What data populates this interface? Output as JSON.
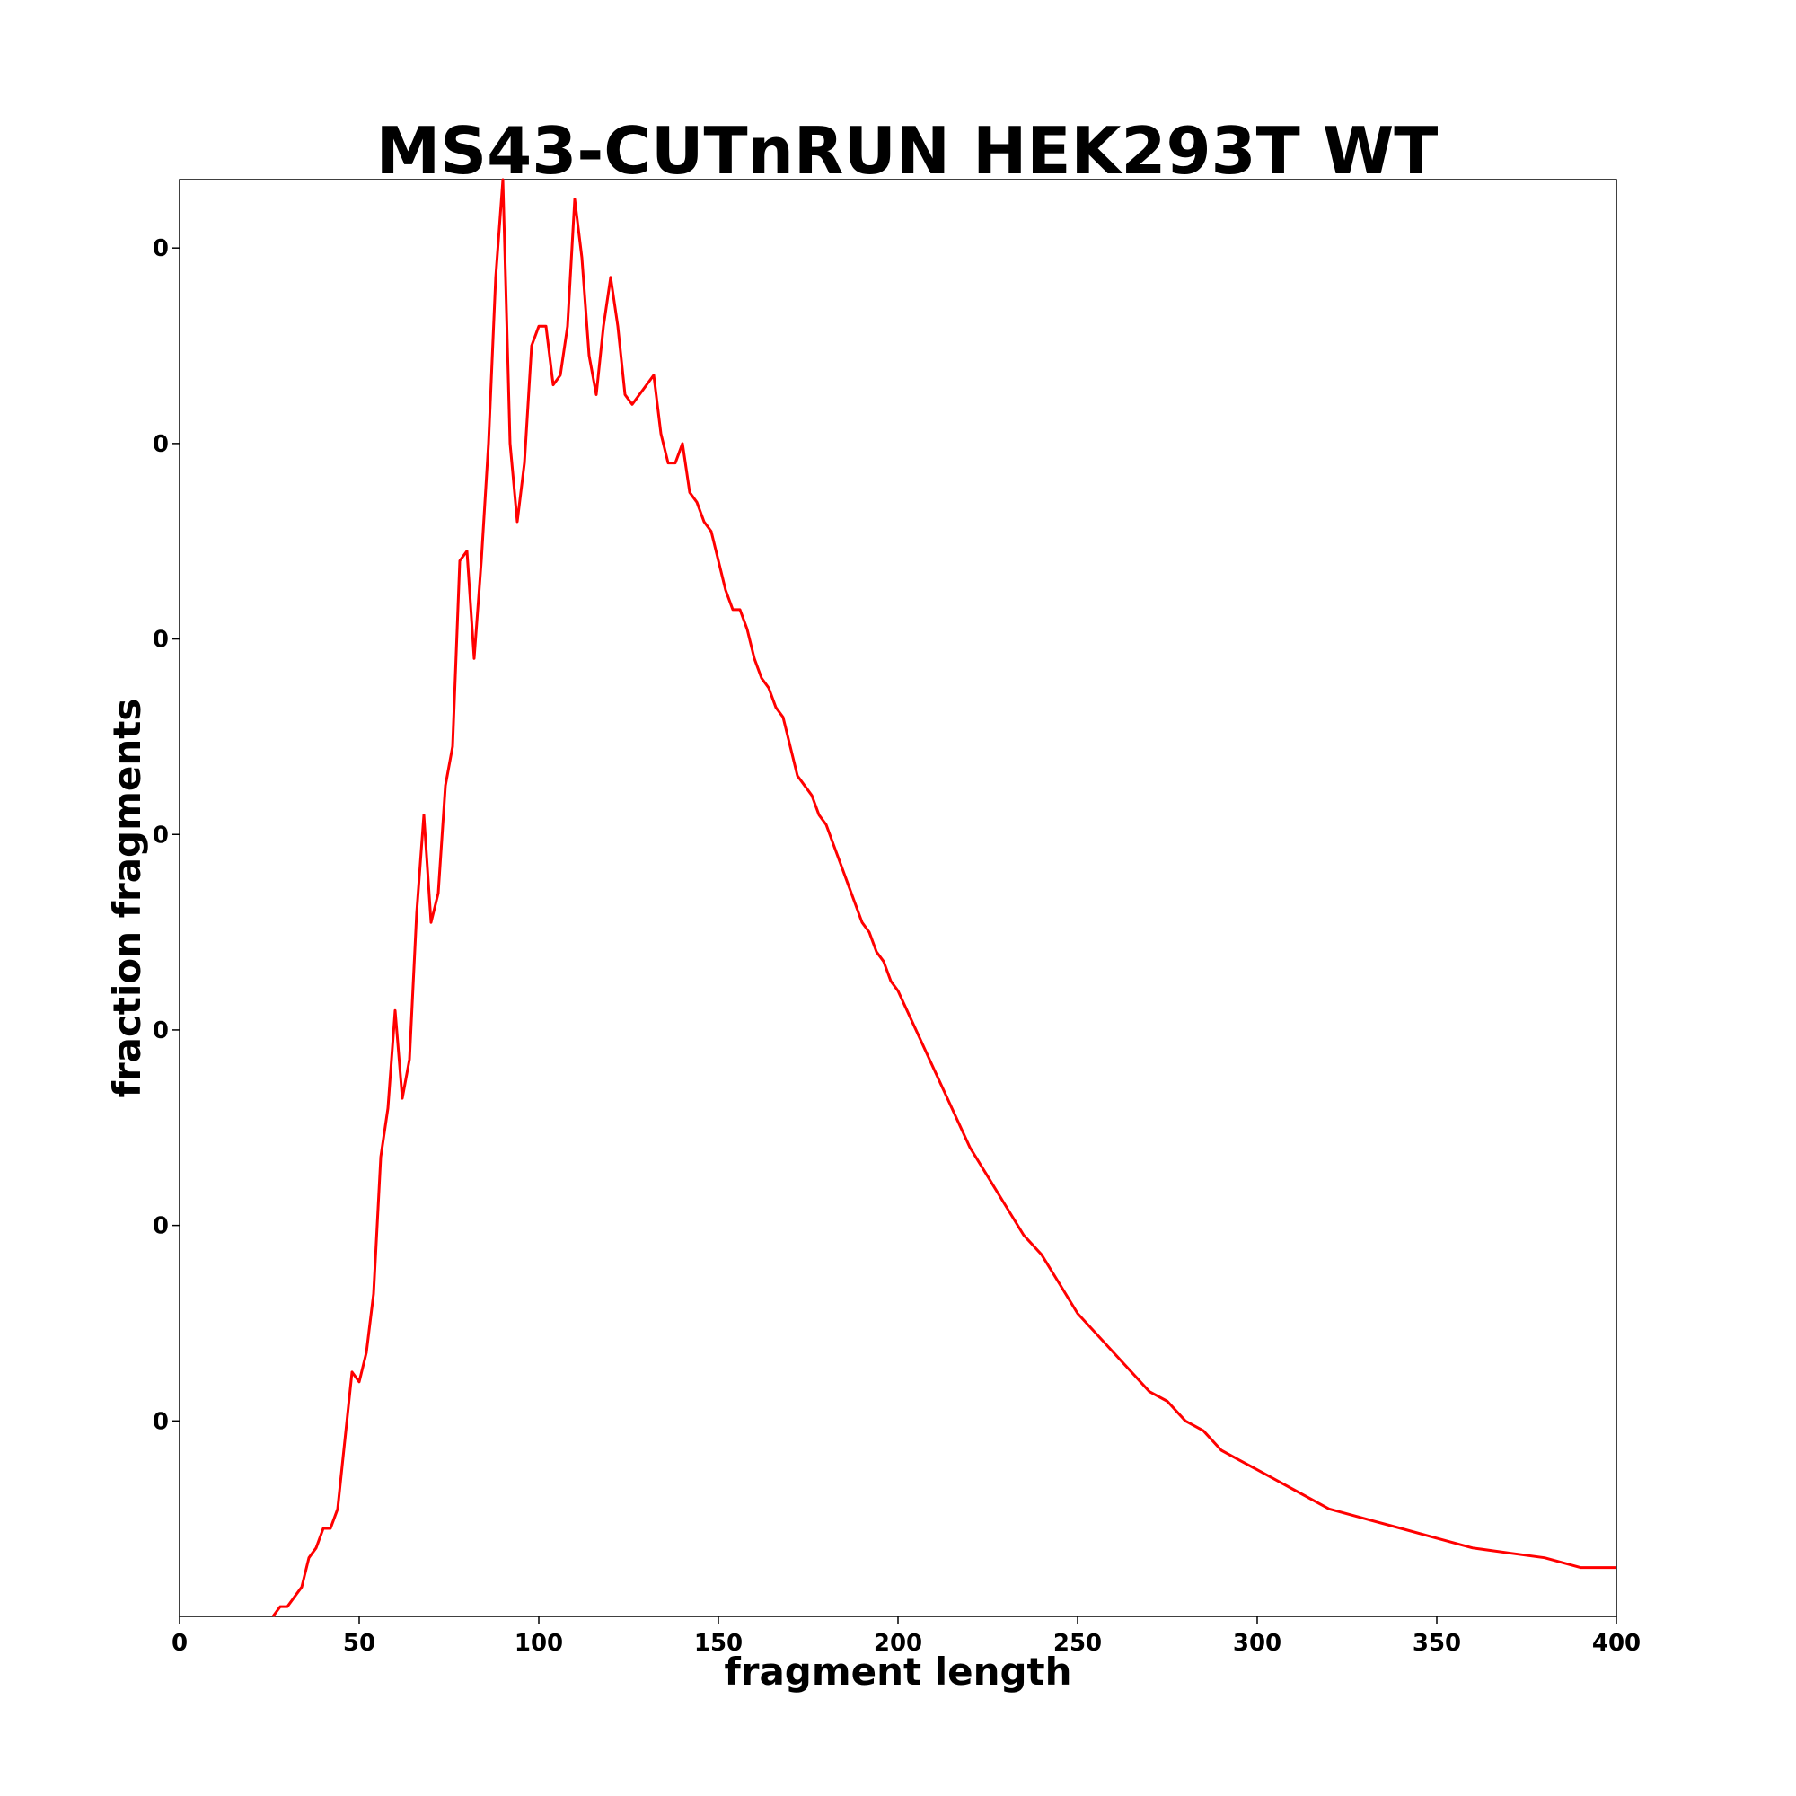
{
  "chart_data": {
    "type": "line",
    "title": "MS43-CUTnRUN HEK293T WT",
    "xlabel": "fragment length",
    "ylabel": "fraction fragments",
    "xlim": [
      0,
      400
    ],
    "ylim": [
      0,
      0.0147
    ],
    "x_ticks": [
      "0",
      "50",
      "100",
      "150",
      "200",
      "250",
      "300",
      "350",
      "400"
    ],
    "x_tick_values": [
      0,
      50,
      100,
      150,
      200,
      250,
      300,
      350,
      400
    ],
    "y_ticks": [
      "0",
      "0",
      "0",
      "0",
      "0",
      "0",
      "0"
    ],
    "y_tick_values": [
      0.002,
      0.004,
      0.006,
      0.008,
      0.01,
      0.012,
      0.014
    ],
    "grid": false,
    "series": [
      {
        "color": "#ff0000",
        "x": [
          26,
          28,
          30,
          32,
          34,
          36,
          38,
          40,
          42,
          44,
          46,
          48,
          50,
          52,
          54,
          56,
          58,
          60,
          62,
          64,
          66,
          68,
          70,
          72,
          74,
          76,
          78,
          80,
          82,
          84,
          86,
          88,
          90,
          92,
          94,
          96,
          98,
          100,
          102,
          104,
          106,
          108,
          110,
          112,
          114,
          116,
          118,
          120,
          122,
          124,
          126,
          128,
          130,
          132,
          134,
          136,
          138,
          140,
          142,
          144,
          146,
          148,
          150,
          152,
          154,
          156,
          158,
          160,
          162,
          164,
          166,
          168,
          170,
          172,
          174,
          176,
          178,
          180,
          182,
          184,
          186,
          188,
          190,
          192,
          194,
          196,
          198,
          200,
          205,
          210,
          215,
          220,
          225,
          230,
          235,
          240,
          245,
          250,
          255,
          260,
          265,
          270,
          275,
          280,
          285,
          290,
          295,
          300,
          310,
          320,
          330,
          340,
          350,
          360,
          370,
          380,
          390,
          400
        ],
        "y": [
          0.0,
          0.0001,
          0.0001,
          0.0002,
          0.0003,
          0.0006,
          0.0007,
          0.0009,
          0.0009,
          0.0011,
          0.0018,
          0.0025,
          0.0024,
          0.0027,
          0.0033,
          0.0047,
          0.0052,
          0.0062,
          0.0053,
          0.0057,
          0.0072,
          0.0082,
          0.0071,
          0.0074,
          0.0085,
          0.0089,
          0.0108,
          0.0109,
          0.0098,
          0.0108,
          0.012,
          0.0137,
          0.0147,
          0.012,
          0.0112,
          0.0118,
          0.013,
          0.0132,
          0.0132,
          0.0126,
          0.0127,
          0.0132,
          0.0145,
          0.0139,
          0.0129,
          0.0125,
          0.0132,
          0.0137,
          0.0132,
          0.0125,
          0.0124,
          0.0125,
          0.0126,
          0.0127,
          0.0121,
          0.0118,
          0.0118,
          0.012,
          0.0115,
          0.0114,
          0.0112,
          0.0111,
          0.0108,
          0.0105,
          0.0103,
          0.0103,
          0.0101,
          0.0098,
          0.0096,
          0.0095,
          0.0093,
          0.0092,
          0.0089,
          0.0086,
          0.0085,
          0.0084,
          0.0082,
          0.0081,
          0.0079,
          0.0077,
          0.0075,
          0.0073,
          0.0071,
          0.007,
          0.0068,
          0.0067,
          0.0065,
          0.0064,
          0.006,
          0.0056,
          0.0052,
          0.0048,
          0.0045,
          0.0042,
          0.0039,
          0.0037,
          0.0034,
          0.0031,
          0.0029,
          0.0027,
          0.0025,
          0.0023,
          0.0022,
          0.002,
          0.0019,
          0.0017,
          0.0016,
          0.0015,
          0.0013,
          0.0011,
          0.001,
          0.0009,
          0.0008,
          0.0007,
          0.00065,
          0.0006,
          0.0005,
          0.0005
        ]
      }
    ]
  }
}
